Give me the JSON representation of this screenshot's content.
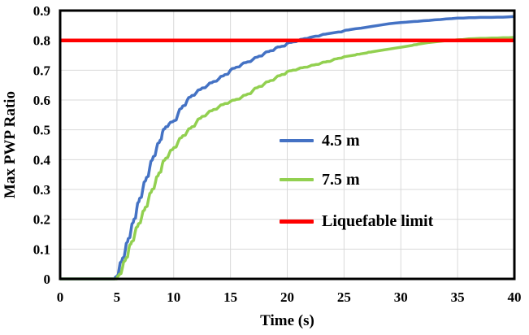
{
  "figure": {
    "background": "#FFFFFF"
  },
  "chart_data": {
    "type": "line",
    "title": "",
    "xlabel": "Time (s)",
    "ylabel": "Max PWP Ratio",
    "xlim": [
      0,
      40
    ],
    "ylim": [
      0,
      0.9
    ],
    "xticks": [
      0,
      5,
      10,
      15,
      20,
      25,
      30,
      35,
      40
    ],
    "xtick_labels": [
      "0",
      "5",
      "10",
      "15",
      "20",
      "25",
      "30",
      "35",
      "40"
    ],
    "yticks": [
      0,
      0.1,
      0.2,
      0.3,
      0.4,
      0.5,
      0.6,
      0.7,
      0.8,
      0.9
    ],
    "ytick_labels": [
      "0",
      "0.1",
      "0.2",
      "0.3",
      "0.4",
      "0.5",
      "0.6",
      "0.7",
      "0.8",
      "0.9"
    ],
    "grid": true,
    "gridline_color": "#D9D9D9",
    "axis_color": "#000000",
    "legend_position": "inside-right",
    "series": [
      {
        "name": "4.5 m",
        "color": "#4472C4",
        "width": 3.5,
        "points": [
          [
            0,
            0
          ],
          [
            1,
            0
          ],
          [
            2,
            0
          ],
          [
            3,
            0
          ],
          [
            4,
            0
          ],
          [
            4.8,
            0
          ],
          [
            5.0,
            0.01
          ],
          [
            5.2,
            0.035
          ],
          [
            5.5,
            0.07
          ],
          [
            5.75,
            0.1
          ],
          [
            6.0,
            0.135
          ],
          [
            6.25,
            0.165
          ],
          [
            6.5,
            0.2
          ],
          [
            6.75,
            0.235
          ],
          [
            7.0,
            0.27
          ],
          [
            7.3,
            0.305
          ],
          [
            7.6,
            0.34
          ],
          [
            7.9,
            0.375
          ],
          [
            8.2,
            0.41
          ],
          [
            8.5,
            0.44
          ],
          [
            8.8,
            0.465
          ],
          [
            9.0,
            0.49
          ],
          [
            9.3,
            0.51
          ],
          [
            9.6,
            0.52
          ],
          [
            10.0,
            0.53
          ],
          [
            10.4,
            0.555
          ],
          [
            10.8,
            0.58
          ],
          [
            11.2,
            0.6
          ],
          [
            11.6,
            0.615
          ],
          [
            12.0,
            0.625
          ],
          [
            12.5,
            0.64
          ],
          [
            13.0,
            0.65
          ],
          [
            13.5,
            0.662
          ],
          [
            14.0,
            0.672
          ],
          [
            14.5,
            0.685
          ],
          [
            15.0,
            0.7
          ],
          [
            15.5,
            0.71
          ],
          [
            16.0,
            0.72
          ],
          [
            16.5,
            0.728
          ],
          [
            17.0,
            0.737
          ],
          [
            17.5,
            0.747
          ],
          [
            18.0,
            0.757
          ],
          [
            18.5,
            0.765
          ],
          [
            19.0,
            0.775
          ],
          [
            19.5,
            0.78
          ],
          [
            20.0,
            0.79
          ],
          [
            20.5,
            0.795
          ],
          [
            21.0,
            0.8
          ],
          [
            21.5,
            0.806
          ],
          [
            22.0,
            0.81
          ],
          [
            22.5,
            0.814
          ],
          [
            23.0,
            0.818
          ],
          [
            23.5,
            0.822
          ],
          [
            24.0,
            0.825
          ],
          [
            24.5,
            0.828
          ],
          [
            25.0,
            0.832
          ],
          [
            25.5,
            0.836
          ],
          [
            26.0,
            0.839
          ],
          [
            26.5,
            0.841
          ],
          [
            27.0,
            0.844
          ],
          [
            27.5,
            0.847
          ],
          [
            28.0,
            0.85
          ],
          [
            28.5,
            0.853
          ],
          [
            29.0,
            0.856
          ],
          [
            29.5,
            0.858
          ],
          [
            30.0,
            0.86
          ],
          [
            30.5,
            0.861
          ],
          [
            31.0,
            0.863
          ],
          [
            31.5,
            0.864
          ],
          [
            32.0,
            0.866
          ],
          [
            32.5,
            0.867
          ],
          [
            33.0,
            0.869
          ],
          [
            33.5,
            0.87
          ],
          [
            34.0,
            0.872
          ],
          [
            34.5,
            0.873
          ],
          [
            35.0,
            0.875
          ],
          [
            35.5,
            0.875
          ],
          [
            36.0,
            0.876
          ],
          [
            36.5,
            0.876
          ],
          [
            37.0,
            0.877
          ],
          [
            37.5,
            0.877
          ],
          [
            38.0,
            0.877
          ],
          [
            38.5,
            0.878
          ],
          [
            39.0,
            0.878
          ],
          [
            39.5,
            0.879
          ],
          [
            40.0,
            0.88
          ]
        ]
      },
      {
        "name": "7.5 m",
        "color": "#92D050",
        "width": 3.5,
        "points": [
          [
            0,
            0
          ],
          [
            1,
            0
          ],
          [
            2,
            0
          ],
          [
            3,
            0
          ],
          [
            4,
            0
          ],
          [
            5.0,
            0
          ],
          [
            5.2,
            0.015
          ],
          [
            5.5,
            0.04
          ],
          [
            5.8,
            0.07
          ],
          [
            6.05,
            0.1
          ],
          [
            6.3,
            0.125
          ],
          [
            6.6,
            0.155
          ],
          [
            6.9,
            0.185
          ],
          [
            7.2,
            0.21
          ],
          [
            7.5,
            0.24
          ],
          [
            7.8,
            0.27
          ],
          [
            8.1,
            0.3
          ],
          [
            8.4,
            0.325
          ],
          [
            8.7,
            0.355
          ],
          [
            9.0,
            0.385
          ],
          [
            9.3,
            0.405
          ],
          [
            9.6,
            0.42
          ],
          [
            10.0,
            0.44
          ],
          [
            10.4,
            0.46
          ],
          [
            10.8,
            0.48
          ],
          [
            11.2,
            0.495
          ],
          [
            11.6,
            0.51
          ],
          [
            12.0,
            0.525
          ],
          [
            12.5,
            0.545
          ],
          [
            13.0,
            0.556
          ],
          [
            13.5,
            0.568
          ],
          [
            14.0,
            0.578
          ],
          [
            14.5,
            0.588
          ],
          [
            15.0,
            0.595
          ],
          [
            15.5,
            0.602
          ],
          [
            16.0,
            0.61
          ],
          [
            16.5,
            0.62
          ],
          [
            17.0,
            0.633
          ],
          [
            17.5,
            0.645
          ],
          [
            18.0,
            0.655
          ],
          [
            18.5,
            0.665
          ],
          [
            19.0,
            0.675
          ],
          [
            19.5,
            0.685
          ],
          [
            20.0,
            0.695
          ],
          [
            20.5,
            0.7
          ],
          [
            21.0,
            0.705
          ],
          [
            21.5,
            0.71
          ],
          [
            22.0,
            0.714
          ],
          [
            22.5,
            0.719
          ],
          [
            23.0,
            0.724
          ],
          [
            23.5,
            0.729
          ],
          [
            24.0,
            0.734
          ],
          [
            24.5,
            0.74
          ],
          [
            25.0,
            0.745
          ],
          [
            25.5,
            0.748
          ],
          [
            26.0,
            0.751
          ],
          [
            26.5,
            0.755
          ],
          [
            27.0,
            0.758
          ],
          [
            27.5,
            0.762
          ],
          [
            28.0,
            0.765
          ],
          [
            28.5,
            0.768
          ],
          [
            29.0,
            0.771
          ],
          [
            29.5,
            0.774
          ],
          [
            30.0,
            0.777
          ],
          [
            30.5,
            0.78
          ],
          [
            31.0,
            0.783
          ],
          [
            31.5,
            0.787
          ],
          [
            32.0,
            0.79
          ],
          [
            32.5,
            0.793
          ],
          [
            33.0,
            0.795
          ],
          [
            33.5,
            0.797
          ],
          [
            34.0,
            0.799
          ],
          [
            34.5,
            0.8
          ],
          [
            35.0,
            0.802
          ],
          [
            35.5,
            0.803
          ],
          [
            36.0,
            0.805
          ],
          [
            36.5,
            0.806
          ],
          [
            37.0,
            0.807
          ],
          [
            37.5,
            0.807
          ],
          [
            38.0,
            0.808
          ],
          [
            38.5,
            0.808
          ],
          [
            39.0,
            0.809
          ],
          [
            39.5,
            0.809
          ],
          [
            40.0,
            0.81
          ]
        ]
      },
      {
        "name": "Liquefable limit",
        "color": "#FF0000",
        "width": 4.5,
        "points": [
          [
            0,
            0.8
          ],
          [
            40,
            0.8
          ]
        ]
      }
    ]
  }
}
